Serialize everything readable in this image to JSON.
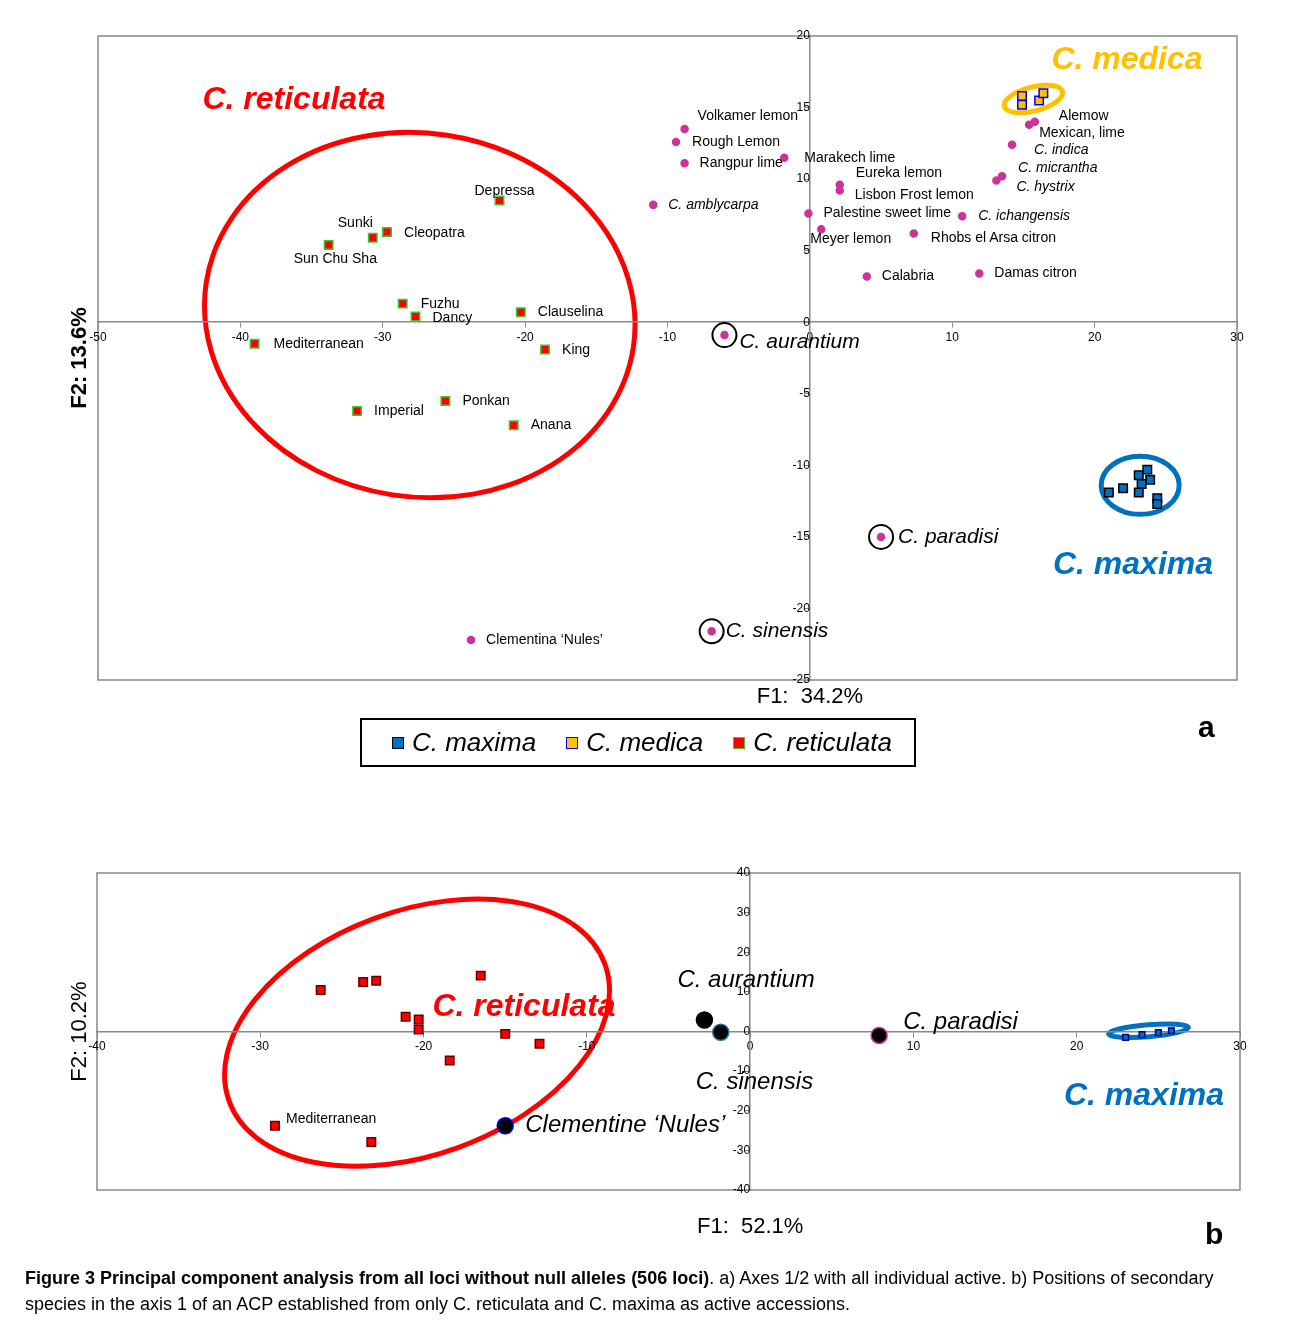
{
  "chart_data": [
    {
      "type": "scatter",
      "xlabel": "F1:  34.2%",
      "ylabel": "F2: 13.6%",
      "xlim": [
        -50,
        30
      ],
      "ylim": [
        -25,
        20
      ],
      "xticks": [
        -50,
        -40,
        -30,
        -20,
        -10,
        0,
        10,
        20,
        30
      ],
      "yticks": [
        -25,
        -20,
        -15,
        -10,
        -5,
        0,
        5,
        10,
        15,
        20
      ],
      "grid": false,
      "legend": "bottom",
      "series": [
        {
          "name": "C. maxima",
          "color": "#0070c0",
          "marker": "square",
          "x": [
            21.0,
            22.0,
            23.1,
            23.7,
            23.9,
            23.3,
            23.1,
            24.4,
            24.4
          ],
          "values": [
            -11.9,
            -11.6,
            -10.7,
            -10.3,
            -11.0,
            -11.3,
            -11.9,
            -12.3,
            -12.7
          ]
        },
        {
          "name": "C. medica",
          "color": "#ffc000",
          "marker": "square",
          "x": [
            14.9,
            14.9,
            16.1,
            16.4
          ],
          "values": [
            15.8,
            15.2,
            15.5,
            16.0
          ]
        },
        {
          "name": "C. reticulata",
          "color": "#ff0000",
          "marker": "square",
          "x": [
            -21.8,
            -30.7,
            -29.7,
            -33.8,
            -28.6,
            -27.7,
            -20.3,
            -39.0,
            -18.6,
            -25.6,
            -31.8,
            -20.8
          ],
          "values": [
            8.5,
            5.9,
            6.3,
            5.4,
            1.3,
            0.4,
            0.7,
            -1.5,
            -1.9,
            -5.5,
            -6.2,
            -7.2
          ]
        },
        {
          "color": "#cc3399",
          "marker": "circle",
          "x": [
            -8.8,
            -9.4,
            -8.8,
            -11.0,
            -1.8,
            2.1,
            2.1,
            -0.1,
            0.8,
            7.3,
            4.0,
            11.9,
            10.7,
            13.1,
            13.5,
            14.2,
            15.8,
            15.4,
            -6.0,
            5.0,
            -6.9,
            -23.8
          ],
          "values": [
            13.5,
            12.6,
            11.1,
            8.2,
            11.5,
            9.6,
            9.2,
            7.6,
            6.5,
            6.2,
            3.2,
            3.4,
            7.4,
            9.9,
            10.2,
            12.4,
            14.0,
            13.8,
            -0.9,
            -15.0,
            -21.6,
            -22.2
          ]
        }
      ],
      "annotations": [
        "C. reticulata",
        "C. medica",
        "C. maxima",
        {
          "text": "Depressa",
          "x": -21.8,
          "y": 8.5
        },
        {
          "text": "Sunki",
          "x": -30.7,
          "y": 5.9
        },
        {
          "text": "Cleopatra",
          "x": -29.7,
          "y": 6.3
        },
        {
          "text": "Sun Chu Sha",
          "x": -33.8,
          "y": 5.4
        },
        {
          "text": "Fuzhu",
          "x": -28.6,
          "y": 1.3
        },
        {
          "text": "Dancy",
          "x": -27.7,
          "y": 0.4
        },
        {
          "text": "Clauselina",
          "x": -20.3,
          "y": 0.7
        },
        {
          "text": "Mediterranean",
          "x": -39.0,
          "y": -1.5
        },
        {
          "text": "King",
          "x": -18.6,
          "y": -1.9
        },
        {
          "text": "Ponkan",
          "x": -25.6,
          "y": -5.5
        },
        {
          "text": "Imperial",
          "x": -31.8,
          "y": -6.2
        },
        {
          "text": "Anana",
          "x": -20.8,
          "y": -7.2
        },
        {
          "text": "Volkamer lemon",
          "x": -8.8,
          "y": 13.5
        },
        {
          "text": "Rough Lemon",
          "x": -9.4,
          "y": 12.6
        },
        {
          "text": "Rangpur lime",
          "x": -8.8,
          "y": 11.1
        },
        {
          "text": "C. amblycarpa",
          "x": -11.0,
          "y": 8.2
        },
        {
          "text": "Marakech lime",
          "x": -1.8,
          "y": 11.5
        },
        {
          "text": "Eureka lemon",
          "x": 2.1,
          "y": 9.6
        },
        {
          "text": "Lisbon Frost lemon",
          "x": 2.1,
          "y": 9.2
        },
        {
          "text": "Palestine sweet lime",
          "x": -0.1,
          "y": 7.6
        },
        {
          "text": "Meyer lemon",
          "x": 0.8,
          "y": 6.5
        },
        {
          "text": "Rhobs el Arsa citron",
          "x": 7.3,
          "y": 6.2
        },
        {
          "text": "Calabria",
          "x": 4.0,
          "y": 3.2
        },
        {
          "text": "Damas citron",
          "x": 11.9,
          "y": 3.4
        },
        {
          "text": "C. ichangensis",
          "x": 10.7,
          "y": 7.4
        },
        {
          "text": "C. hystrix",
          "x": 13.1,
          "y": 9.9
        },
        {
          "text": "C. micrantha",
          "x": 13.5,
          "y": 10.2
        },
        {
          "text": "C. indica",
          "x": 14.2,
          "y": 12.4
        },
        {
          "text": "Alemow",
          "x": 15.8,
          "y": 14.0
        },
        {
          "text": "Mexican, lime",
          "x": 15.4,
          "y": 13.8
        },
        {
          "text": "C. aurantium",
          "x": -6.0,
          "y": -0.9
        },
        {
          "text": "C. paradisi",
          "x": 5.0,
          "y": -15.0
        },
        {
          "text": "C. sinensis",
          "x": -6.9,
          "y": -21.6
        },
        {
          "text": "Clementina ‘Nules’",
          "x": -23.8,
          "y": -22.2
        },
        "a"
      ]
    },
    {
      "type": "scatter",
      "xlabel": "F1:  52.1%",
      "ylabel": "F2: 10.2%",
      "xlim": [
        -40,
        30
      ],
      "ylim": [
        -40,
        40
      ],
      "xticks": [
        -40,
        -30,
        -20,
        -10,
        0,
        10,
        20,
        30
      ],
      "yticks": [
        -40,
        -30,
        -20,
        -10,
        0,
        10,
        20,
        30,
        40
      ],
      "grid": false,
      "series": [
        {
          "color": "#ff0000",
          "marker": "square",
          "x": [
            -26.3,
            -23.7,
            -22.9,
            -16.5,
            -21.1,
            -20.3,
            -20.3,
            -15.0,
            -12.9,
            -18.4,
            -29.1,
            -23.2
          ],
          "values": [
            10.5,
            12.5,
            12.8,
            14.1,
            3.7,
            3.0,
            0.5,
            -0.6,
            -3.1,
            -7.3,
            -23.8,
            -27.9
          ]
        },
        {
          "color": "#0070c0",
          "marker": "square",
          "x": [
            23.0,
            24.0,
            25.0,
            25.8
          ],
          "values": [
            -1.5,
            -0.8,
            -0.3,
            0.2
          ]
        },
        {
          "color": "#000000",
          "marker": "circle",
          "x": [
            -2.8,
            -1.8,
            7.9,
            -15.0
          ],
          "values": [
            2.9,
            -0.2,
            -1.0,
            -23.8
          ]
        }
      ],
      "annotations": [
        "C. reticulata",
        "C. maxima",
        {
          "text": "C. aurantium",
          "x": -2.8,
          "y": 2.9
        },
        {
          "text": "C. paradisi",
          "x": 7.9,
          "y": -1.0
        },
        {
          "text": "C. sinensis",
          "x": -1.8,
          "y": -0.2
        },
        {
          "text": "Clementine ‘Nules’",
          "x": -15.0,
          "y": -23.8
        },
        {
          "text": "Mediterranean",
          "x": -29.1,
          "y": -23.8
        },
        "b",
        "Figure 3 Principal component analysis from all loci without null alleles (506 loci)",
        ". a) Axes 1/2 with all individual active. b) Positions of secondary species in the axis 1 of an ACP established from only C. reticulata and C. maxima as active accessions."
      ]
    }
  ]
}
